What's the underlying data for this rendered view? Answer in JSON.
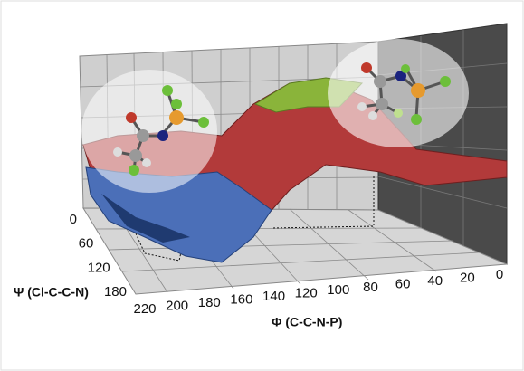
{
  "axes": {
    "phi": {
      "label": "Φ (C-C-N-P)",
      "ticks": [
        220,
        200,
        180,
        160,
        140,
        120,
        100,
        80,
        60,
        40,
        20,
        0
      ]
    },
    "psi": {
      "label": "Ψ (Cl-C-C-N)",
      "ticks": [
        0,
        60,
        120,
        180
      ]
    }
  }
}
